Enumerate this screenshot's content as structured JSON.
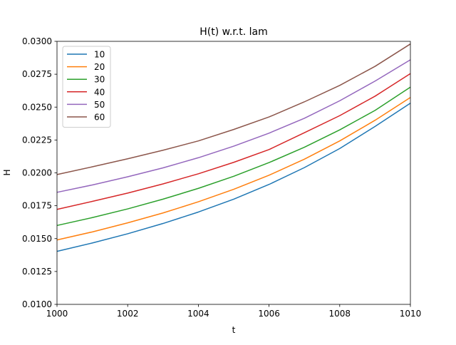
{
  "chart_data": {
    "type": "line",
    "title": "H(t) w.r.t. lam",
    "xlabel": "t",
    "ylabel": "H",
    "xlim": [
      1000,
      1010
    ],
    "ylim": [
      0.01,
      0.03
    ],
    "x_ticks": [
      1000,
      1002,
      1004,
      1006,
      1008,
      1010
    ],
    "x_tick_labels": [
      "1000",
      "1002",
      "1004",
      "1006",
      "1008",
      "1010"
    ],
    "y_ticks": [
      0.01,
      0.0125,
      0.015,
      0.0175,
      0.02,
      0.0225,
      0.025,
      0.0275,
      0.03
    ],
    "y_tick_labels": [
      "0.0100",
      "0.0125",
      "0.0150",
      "0.0175",
      "0.0200",
      "0.0225",
      "0.0250",
      "0.0275",
      "0.0300"
    ],
    "grid": false,
    "legend_position": "top-left",
    "x": [
      1000,
      1001,
      1002,
      1003,
      1004,
      1005,
      1006,
      1007,
      1008,
      1009,
      1010
    ],
    "series": [
      {
        "name": "10",
        "color": "#1f77b4",
        "values": [
          0.01403,
          0.01467,
          0.01537,
          0.01615,
          0.01702,
          0.018,
          0.01912,
          0.0204,
          0.02185,
          0.02353,
          0.0253
        ]
      },
      {
        "name": "20",
        "color": "#ff7f0e",
        "values": [
          0.0149,
          0.01551,
          0.0162,
          0.01695,
          0.0178,
          0.01875,
          0.01982,
          0.02104,
          0.02243,
          0.024,
          0.02573
        ]
      },
      {
        "name": "30",
        "color": "#2ca02c",
        "values": [
          0.016,
          0.0166,
          0.01726,
          0.018,
          0.01882,
          0.01974,
          0.02078,
          0.02195,
          0.02327,
          0.02475,
          0.02652
        ]
      },
      {
        "name": "40",
        "color": "#d62728",
        "values": [
          0.01722,
          0.01783,
          0.01846,
          0.01916,
          0.01993,
          0.0208,
          0.02177,
          0.02305,
          0.02435,
          0.02583,
          0.02755
        ]
      },
      {
        "name": "50",
        "color": "#9467bd",
        "values": [
          0.01852,
          0.01908,
          0.0197,
          0.02038,
          0.02115,
          0.02203,
          0.02302,
          0.02415,
          0.02548,
          0.02698,
          0.0286
        ]
      },
      {
        "name": "60",
        "color": "#8c564b",
        "values": [
          0.01987,
          0.02046,
          0.02107,
          0.02172,
          0.02243,
          0.0233,
          0.02425,
          0.0254,
          0.02665,
          0.0281,
          0.0298
        ]
      }
    ]
  }
}
